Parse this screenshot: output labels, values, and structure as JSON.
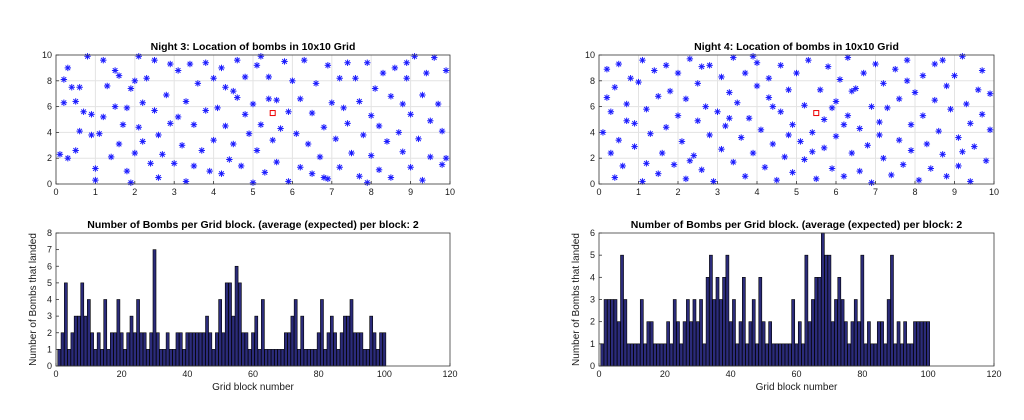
{
  "chart_data": [
    {
      "type": "scatter",
      "title": "Night 3: Location of bombs in 10x10 Grid",
      "xlim": [
        0,
        10
      ],
      "ylim": [
        0,
        10
      ],
      "xticks": [
        0,
        1,
        2,
        3,
        4,
        5,
        6,
        7,
        8,
        9,
        10
      ],
      "yticks": [
        0,
        2,
        4,
        6,
        8,
        10
      ],
      "grid": true,
      "target": {
        "x": 5.5,
        "y": 5.5
      },
      "points": [
        [
          0.1,
          2.3
        ],
        [
          0.2,
          6.3
        ],
        [
          0.2,
          8.1
        ],
        [
          0.3,
          9.0
        ],
        [
          0.3,
          2.0
        ],
        [
          0.4,
          7.5
        ],
        [
          0.5,
          2.6
        ],
        [
          0.5,
          6.4
        ],
        [
          0.6,
          7.5
        ],
        [
          0.7,
          5.6
        ],
        [
          0.8,
          9.9
        ],
        [
          0.9,
          3.8
        ],
        [
          0.9,
          5.4
        ],
        [
          1.0,
          1.2
        ],
        [
          1.0,
          0.3
        ],
        [
          1.1,
          3.9
        ],
        [
          1.2,
          5.2
        ],
        [
          1.3,
          7.6
        ],
        [
          1.4,
          2.1
        ],
        [
          1.5,
          8.8
        ],
        [
          1.5,
          6.0
        ],
        [
          1.6,
          3.1
        ],
        [
          1.6,
          8.4
        ],
        [
          1.7,
          4.6
        ],
        [
          1.8,
          1.0
        ],
        [
          1.8,
          5.9
        ],
        [
          1.9,
          0.1
        ],
        [
          1.9,
          7.4
        ],
        [
          2.0,
          2.4
        ],
        [
          2.0,
          8.0
        ],
        [
          2.1,
          4.4
        ],
        [
          2.2,
          6.3
        ],
        [
          2.2,
          3.3
        ],
        [
          2.3,
          8.2
        ],
        [
          2.4,
          1.6
        ],
        [
          2.5,
          9.6
        ],
        [
          2.5,
          5.7
        ],
        [
          2.6,
          3.8
        ],
        [
          2.7,
          2.3
        ],
        [
          2.8,
          6.9
        ],
        [
          2.9,
          4.7
        ],
        [
          2.9,
          9.3
        ],
        [
          3.0,
          1.6
        ],
        [
          3.1,
          5.2
        ],
        [
          3.1,
          8.8
        ],
        [
          3.2,
          3.0
        ],
        [
          3.3,
          6.4
        ],
        [
          3.4,
          9.3
        ],
        [
          3.5,
          1.4
        ],
        [
          3.5,
          4.6
        ],
        [
          3.6,
          7.8
        ],
        [
          3.7,
          2.6
        ],
        [
          3.8,
          5.7
        ],
        [
          3.8,
          9.4
        ],
        [
          3.9,
          1.0
        ],
        [
          4.0,
          8.2
        ],
        [
          4.0,
          3.4
        ],
        [
          4.1,
          5.9
        ],
        [
          4.2,
          0.8
        ],
        [
          4.2,
          9.0
        ],
        [
          4.3,
          4.5
        ],
        [
          4.4,
          1.9
        ],
        [
          4.5,
          7.2
        ],
        [
          4.5,
          3.1
        ],
        [
          4.6,
          9.6
        ],
        [
          4.7,
          1.4
        ],
        [
          4.8,
          5.4
        ],
        [
          4.8,
          8.3
        ],
        [
          4.9,
          3.9
        ],
        [
          5.0,
          0.1
        ],
        [
          5.0,
          6.2
        ],
        [
          5.1,
          2.6
        ],
        [
          5.1,
          9.2
        ],
        [
          5.2,
          4.6
        ],
        [
          5.3,
          0.9
        ],
        [
          5.4,
          6.6
        ],
        [
          5.4,
          8.3
        ],
        [
          5.5,
          3.4
        ],
        [
          5.6,
          1.7
        ],
        [
          5.6,
          6.5
        ],
        [
          5.7,
          4.3
        ],
        [
          5.8,
          9.5
        ],
        [
          5.9,
          0.2
        ],
        [
          5.9,
          5.6
        ],
        [
          6.0,
          8.0
        ],
        [
          6.1,
          3.9
        ],
        [
          6.2,
          1.3
        ],
        [
          6.2,
          6.6
        ],
        [
          6.3,
          9.6
        ],
        [
          6.4,
          3.1
        ],
        [
          6.5,
          0.8
        ],
        [
          6.5,
          5.5
        ],
        [
          6.6,
          7.8
        ],
        [
          6.7,
          2.1
        ],
        [
          6.8,
          4.4
        ],
        [
          6.9,
          9.2
        ],
        [
          6.9,
          0.4
        ],
        [
          7.0,
          6.3
        ],
        [
          7.1,
          3.5
        ],
        [
          7.2,
          8.2
        ],
        [
          7.2,
          1.3
        ],
        [
          7.3,
          5.9
        ],
        [
          7.4,
          9.4
        ],
        [
          7.4,
          4.7
        ],
        [
          7.5,
          2.4
        ],
        [
          7.6,
          8.2
        ],
        [
          7.7,
          0.6
        ],
        [
          7.7,
          6.4
        ],
        [
          7.8,
          3.8
        ],
        [
          7.9,
          9.4
        ],
        [
          8.0,
          2.2
        ],
        [
          8.0,
          5.3
        ],
        [
          8.1,
          7.4
        ],
        [
          8.2,
          1.1
        ],
        [
          8.2,
          4.5
        ],
        [
          8.3,
          8.6
        ],
        [
          8.4,
          3.3
        ],
        [
          8.5,
          6.8
        ],
        [
          8.5,
          0.5
        ],
        [
          8.6,
          9.0
        ],
        [
          8.7,
          4.0
        ],
        [
          8.8,
          2.5
        ],
        [
          8.8,
          6.2
        ],
        [
          8.9,
          8.2
        ],
        [
          9.0,
          1.3
        ],
        [
          9.0,
          5.4
        ],
        [
          9.1,
          9.9
        ],
        [
          9.2,
          3.5
        ],
        [
          9.3,
          0.3
        ],
        [
          9.3,
          6.9
        ],
        [
          9.4,
          8.6
        ],
        [
          9.5,
          2.1
        ],
        [
          9.5,
          4.9
        ],
        [
          9.6,
          9.8
        ],
        [
          9.7,
          6.2
        ],
        [
          9.8,
          1.5
        ],
        [
          9.8,
          4.1
        ],
        [
          9.9,
          8.8
        ],
        [
          9.9,
          2.0
        ],
        [
          0.6,
          4.1
        ],
        [
          1.2,
          9.6
        ],
        [
          2.6,
          0.5
        ],
        [
          3.3,
          0.2
        ],
        [
          4.6,
          6.7
        ],
        [
          5.2,
          9.9
        ],
        [
          6.8,
          0.5
        ],
        [
          7.9,
          0.1
        ],
        [
          8.9,
          9.4
        ],
        [
          2.1,
          9.9
        ],
        [
          4.3,
          7.5
        ]
      ]
    },
    {
      "type": "scatter",
      "title": "Night 4: Location of bombs in 10x10 Grid",
      "xlim": [
        0,
        10
      ],
      "ylim": [
        0,
        10
      ],
      "xticks": [
        0,
        1,
        2,
        3,
        4,
        5,
        6,
        7,
        8,
        9,
        10
      ],
      "yticks": [
        0,
        2,
        4,
        6,
        8,
        10
      ],
      "grid": true,
      "target": {
        "x": 5.5,
        "y": 5.5
      },
      "points": [
        [
          0.1,
          4.0
        ],
        [
          0.2,
          6.7
        ],
        [
          0.2,
          8.9
        ],
        [
          0.3,
          2.4
        ],
        [
          0.3,
          5.6
        ],
        [
          0.4,
          7.5
        ],
        [
          0.5,
          3.4
        ],
        [
          0.5,
          9.3
        ],
        [
          0.6,
          1.4
        ],
        [
          0.7,
          6.2
        ],
        [
          0.8,
          8.2
        ],
        [
          0.9,
          2.9
        ],
        [
          0.9,
          4.7
        ],
        [
          1.0,
          7.9
        ],
        [
          1.1,
          9.6
        ],
        [
          1.2,
          1.6
        ],
        [
          1.2,
          5.8
        ],
        [
          1.3,
          3.9
        ],
        [
          1.4,
          8.8
        ],
        [
          1.5,
          0.8
        ],
        [
          1.5,
          6.8
        ],
        [
          1.6,
          2.4
        ],
        [
          1.7,
          4.4
        ],
        [
          1.7,
          9.2
        ],
        [
          1.8,
          7.2
        ],
        [
          1.9,
          1.5
        ],
        [
          2.0,
          5.3
        ],
        [
          2.0,
          8.6
        ],
        [
          2.1,
          3.3
        ],
        [
          2.2,
          0.4
        ],
        [
          2.2,
          6.6
        ],
        [
          2.3,
          9.7
        ],
        [
          2.4,
          2.2
        ],
        [
          2.5,
          4.9
        ],
        [
          2.5,
          7.8
        ],
        [
          2.6,
          1.1
        ],
        [
          2.7,
          6.0
        ],
        [
          2.8,
          3.8
        ],
        [
          2.8,
          9.2
        ],
        [
          2.9,
          0.2
        ],
        [
          3.0,
          5.6
        ],
        [
          3.1,
          8.3
        ],
        [
          3.1,
          2.7
        ],
        [
          3.2,
          4.5
        ],
        [
          3.3,
          7.1
        ],
        [
          3.4,
          9.8
        ],
        [
          3.4,
          1.7
        ],
        [
          3.5,
          6.3
        ],
        [
          3.6,
          3.6
        ],
        [
          3.7,
          8.6
        ],
        [
          3.7,
          0.6
        ],
        [
          3.8,
          5.1
        ],
        [
          3.9,
          2.4
        ],
        [
          4.0,
          7.6
        ],
        [
          4.0,
          9.4
        ],
        [
          4.1,
          4.2
        ],
        [
          4.2,
          1.3
        ],
        [
          4.3,
          6.7
        ],
        [
          4.3,
          8.2
        ],
        [
          4.4,
          3.1
        ],
        [
          4.5,
          0.3
        ],
        [
          4.6,
          5.6
        ],
        [
          4.6,
          9.2
        ],
        [
          4.7,
          2.1
        ],
        [
          4.8,
          7.3
        ],
        [
          4.9,
          4.6
        ],
        [
          4.9,
          0.9
        ],
        [
          5.0,
          8.6
        ],
        [
          5.1,
          3.3
        ],
        [
          5.2,
          6.1
        ],
        [
          5.2,
          1.9
        ],
        [
          5.3,
          9.6
        ],
        [
          5.4,
          4.0
        ],
        [
          5.5,
          0.4
        ],
        [
          5.6,
          7.3
        ],
        [
          5.7,
          2.8
        ],
        [
          5.7,
          5.0
        ],
        [
          5.8,
          9.1
        ],
        [
          5.9,
          1.2
        ],
        [
          6.0,
          6.4
        ],
        [
          6.0,
          3.7
        ],
        [
          6.1,
          8.1
        ],
        [
          6.2,
          0.6
        ],
        [
          6.3,
          5.3
        ],
        [
          6.3,
          9.8
        ],
        [
          6.4,
          2.4
        ],
        [
          6.5,
          7.4
        ],
        [
          6.6,
          4.3
        ],
        [
          6.6,
          1.0
        ],
        [
          6.7,
          8.6
        ],
        [
          6.8,
          3.0
        ],
        [
          6.9,
          6.0
        ],
        [
          6.9,
          0.1
        ],
        [
          7.0,
          9.3
        ],
        [
          7.1,
          4.8
        ],
        [
          7.2,
          2.0
        ],
        [
          7.2,
          7.8
        ],
        [
          7.3,
          5.9
        ],
        [
          7.4,
          0.7
        ],
        [
          7.5,
          8.9
        ],
        [
          7.6,
          3.4
        ],
        [
          7.6,
          6.6
        ],
        [
          7.7,
          1.5
        ],
        [
          7.8,
          9.6
        ],
        [
          7.9,
          4.6
        ],
        [
          7.9,
          2.6
        ],
        [
          8.0,
          7.1
        ],
        [
          8.1,
          0.3
        ],
        [
          8.2,
          5.3
        ],
        [
          8.2,
          8.4
        ],
        [
          8.3,
          3.1
        ],
        [
          8.4,
          1.2
        ],
        [
          8.5,
          6.5
        ],
        [
          8.5,
          9.3
        ],
        [
          8.6,
          4.1
        ],
        [
          8.7,
          2.3
        ],
        [
          8.8,
          7.6
        ],
        [
          8.8,
          0.6
        ],
        [
          8.9,
          5.8
        ],
        [
          9.0,
          8.4
        ],
        [
          9.1,
          3.6
        ],
        [
          9.1,
          1.4
        ],
        [
          9.2,
          9.9
        ],
        [
          9.3,
          6.2
        ],
        [
          9.4,
          4.7
        ],
        [
          9.4,
          0.2
        ],
        [
          9.5,
          2.9
        ],
        [
          9.6,
          7.3
        ],
        [
          9.7,
          5.4
        ],
        [
          9.7,
          8.8
        ],
        [
          9.8,
          1.8
        ],
        [
          9.9,
          4.2
        ],
        [
          9.9,
          7.0
        ],
        [
          0.4,
          0.5
        ],
        [
          1.1,
          0.2
        ],
        [
          2.6,
          9.1
        ],
        [
          3.9,
          9.9
        ],
        [
          4.4,
          6.0
        ],
        [
          5.9,
          5.9
        ],
        [
          6.4,
          7.2
        ],
        [
          7.1,
          3.8
        ],
        [
          8.7,
          9.6
        ],
        [
          9.2,
          2.5
        ],
        [
          0.7,
          4.9
        ],
        [
          2.3,
          1.8
        ],
        [
          3.3,
          5.1
        ],
        [
          4.8,
          3.8
        ],
        [
          5.4,
          2.5
        ],
        [
          6.2,
          4.6
        ],
        [
          7.8,
          8.0
        ]
      ]
    },
    {
      "type": "bar",
      "title": "Number of Bombs per Grid block. (average (expected) per block: 2",
      "xlabel": "Grid block number",
      "ylabel": "Number of Bombs that landed",
      "xlim": [
        0,
        120
      ],
      "ylim": [
        0,
        8
      ],
      "xticks": [
        0,
        20,
        40,
        60,
        80,
        100,
        120
      ],
      "yticks": [
        0,
        1,
        2,
        3,
        4,
        5,
        6,
        7,
        8
      ],
      "values": [
        1,
        2,
        5,
        1,
        2,
        3,
        3,
        5,
        3,
        4,
        2,
        1,
        2,
        1,
        4,
        1,
        2,
        2,
        4,
        2,
        1,
        2,
        3,
        2,
        4,
        2,
        2,
        1,
        2,
        7,
        2,
        1,
        1,
        2,
        1,
        1,
        2,
        2,
        1,
        2,
        2,
        2,
        2,
        2,
        2,
        3,
        2,
        1,
        2,
        4,
        2,
        5,
        5,
        3,
        6,
        5,
        2,
        2,
        1,
        2,
        3,
        1,
        4,
        1,
        1,
        1,
        1,
        1,
        1,
        2,
        2,
        3,
        4,
        1,
        3,
        1,
        1,
        1,
        1,
        2,
        4,
        1,
        2,
        3,
        2,
        1,
        2,
        3,
        3,
        4,
        2,
        2,
        2,
        1,
        1,
        3,
        2,
        1,
        2,
        2
      ]
    },
    {
      "type": "bar",
      "title": "Number of Bombs per Grid block. (average (expected) per block: 2",
      "xlabel": "Grid block number",
      "ylabel": "Number of Bombs that landed",
      "xlim": [
        0,
        120
      ],
      "ylim": [
        0,
        6
      ],
      "xticks": [
        0,
        20,
        40,
        60,
        80,
        100,
        120
      ],
      "yticks": [
        0,
        1,
        2,
        3,
        4,
        5,
        6
      ],
      "values": [
        1,
        3,
        3,
        3,
        3,
        2,
        5,
        3,
        1,
        1,
        1,
        1,
        3,
        1,
        2,
        2,
        1,
        1,
        1,
        1,
        2,
        1,
        3,
        2,
        1,
        2,
        3,
        2,
        3,
        2,
        3,
        1,
        4,
        5,
        3,
        4,
        3,
        4,
        5,
        2,
        3,
        1,
        2,
        4,
        1,
        2,
        3,
        1,
        4,
        2,
        1,
        2,
        1,
        1,
        1,
        1,
        1,
        1,
        3,
        1,
        2,
        1,
        5,
        2,
        3,
        4,
        4,
        6,
        5,
        5,
        2,
        3,
        4,
        3,
        2,
        1,
        2,
        3,
        2,
        5,
        1,
        2,
        1,
        1,
        2,
        2,
        1,
        3,
        5,
        1,
        2,
        1,
        2,
        1,
        1,
        2,
        2,
        2,
        2,
        2
      ]
    }
  ]
}
